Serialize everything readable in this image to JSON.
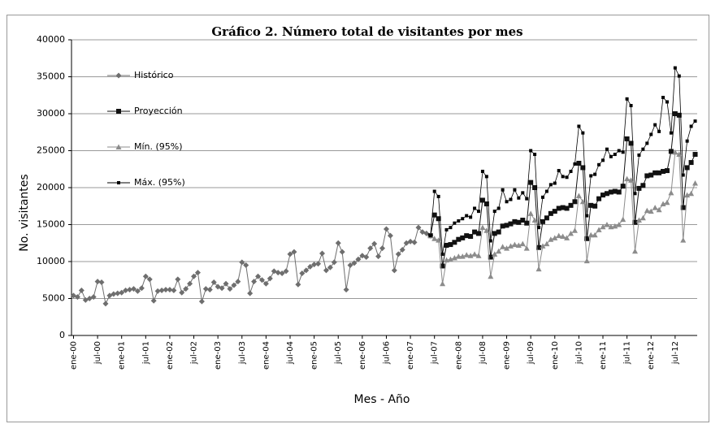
{
  "chart_data": {
    "type": "line",
    "title": "Gráfico 2. Número total de visitantes por mes",
    "x_label": "Mes - Año",
    "y_label": "No. visitantes",
    "categories": [
      "ene-00",
      null,
      null,
      null,
      null,
      null,
      "jul-00",
      null,
      null,
      null,
      null,
      null,
      "ene-01",
      null,
      null,
      null,
      null,
      null,
      "jul-01",
      null,
      null,
      null,
      null,
      null,
      "ene-02",
      null,
      null,
      null,
      null,
      null,
      "jul-02",
      null,
      null,
      null,
      null,
      null,
      "ene-03",
      null,
      null,
      null,
      null,
      null,
      "jul-03",
      null,
      null,
      null,
      null,
      null,
      "ene-04",
      null,
      null,
      null,
      null,
      null,
      "jul-04",
      null,
      null,
      null,
      null,
      null,
      "ene-05",
      null,
      null,
      null,
      null,
      null,
      "jul-05",
      null,
      null,
      null,
      null,
      null,
      "ene-06",
      null,
      null,
      null,
      null,
      null,
      "jul-06",
      null,
      null,
      null,
      null,
      null,
      "ene-07",
      null,
      null,
      null,
      null,
      null,
      "jul-07",
      null,
      null,
      null,
      null,
      null,
      "ene-08",
      null,
      null,
      null,
      null,
      null,
      "jul-08",
      null,
      null,
      null,
      null,
      null,
      "ene-09",
      null,
      null,
      null,
      null,
      null,
      "jul-09",
      null,
      null,
      null,
      null,
      null,
      "ene-10",
      null,
      null,
      null,
      null,
      null,
      "jul-10",
      null,
      null,
      null,
      null,
      null,
      "ene-11",
      null,
      null,
      null,
      null,
      null,
      "jul-11",
      null,
      null,
      null,
      null,
      null,
      "ene-12",
      null,
      null,
      null,
      null,
      null,
      "jul-12",
      null,
      null,
      null,
      null,
      null
    ],
    "series": [
      {
        "name": "Histórico",
        "color": "#6e6e6e",
        "marker": "diamond",
        "values": [
          5400,
          5200,
          6100,
          4800,
          5000,
          5200,
          7300,
          7200,
          4300,
          5400,
          5600,
          5700,
          5800,
          6100,
          6200,
          6300,
          6000,
          6400,
          8000,
          7600,
          4700,
          6000,
          6100,
          6200,
          6200,
          6100,
          7600,
          5800,
          6300,
          7000,
          8000,
          8500,
          4600,
          6300,
          6200,
          7200,
          6600,
          6400,
          7000,
          6300,
          6800,
          7300,
          9900,
          9500,
          5700,
          7300,
          8000,
          7500,
          7000,
          7700,
          8700,
          8500,
          8400,
          8700,
          11000,
          11300,
          6900,
          8400,
          8800,
          9300,
          9600,
          9700,
          11100,
          8800,
          9200,
          9900,
          12500,
          11300,
          6200,
          9500,
          9800,
          10300,
          10800,
          10600,
          11800,
          12400,
          10700,
          11800,
          14400,
          13500,
          8800,
          11000,
          11600,
          12500,
          12700,
          12600,
          14600,
          14000,
          13800,
          13500,
          null,
          null,
          null,
          null,
          null,
          null,
          null,
          null,
          null,
          null,
          null,
          null,
          null,
          null,
          null,
          null,
          null,
          null,
          null,
          null,
          null,
          null,
          null,
          null,
          null,
          null,
          null,
          null,
          null,
          null,
          null,
          null,
          null,
          null,
          null,
          null,
          null,
          null,
          null,
          null,
          null,
          null,
          null,
          null,
          null,
          null,
          null,
          null,
          null,
          null,
          null,
          null,
          null,
          null,
          null,
          null,
          null,
          null,
          null,
          null,
          null,
          null,
          null,
          null,
          null,
          null
        ]
      },
      {
        "name": "Proyección",
        "color": "#111111",
        "marker": "square",
        "values": [
          null,
          null,
          null,
          null,
          null,
          null,
          null,
          null,
          null,
          null,
          null,
          null,
          null,
          null,
          null,
          null,
          null,
          null,
          null,
          null,
          null,
          null,
          null,
          null,
          null,
          null,
          null,
          null,
          null,
          null,
          null,
          null,
          null,
          null,
          null,
          null,
          null,
          null,
          null,
          null,
          null,
          null,
          null,
          null,
          null,
          null,
          null,
          null,
          null,
          null,
          null,
          null,
          null,
          null,
          null,
          null,
          null,
          null,
          null,
          null,
          null,
          null,
          null,
          null,
          null,
          null,
          null,
          null,
          null,
          null,
          null,
          null,
          null,
          null,
          null,
          null,
          null,
          null,
          null,
          null,
          null,
          null,
          null,
          null,
          null,
          null,
          null,
          null,
          null,
          13500,
          16300,
          15800,
          9400,
          12200,
          12300,
          12600,
          13000,
          13200,
          13500,
          13400,
          14000,
          13800,
          18300,
          17800,
          10600,
          13800,
          14000,
          14800,
          14900,
          15100,
          15400,
          15300,
          15600,
          15200,
          20700,
          20000,
          11900,
          15400,
          15900,
          16500,
          16800,
          17200,
          17300,
          17200,
          17600,
          18100,
          23300,
          22700,
          13100,
          17600,
          17500,
          18500,
          19000,
          19200,
          19400,
          19500,
          19400,
          20200,
          26600,
          26000,
          15300,
          19900,
          20300,
          21600,
          21700,
          22000,
          22000,
          22200,
          22300,
          24900,
          30000,
          29800,
          17300,
          22700,
          23400,
          24500
        ]
      },
      {
        "name": "Mín. (95%)",
        "color": "#8c8c8c",
        "marker": "triangle",
        "values": [
          null,
          null,
          null,
          null,
          null,
          null,
          null,
          null,
          null,
          null,
          null,
          null,
          null,
          null,
          null,
          null,
          null,
          null,
          null,
          null,
          null,
          null,
          null,
          null,
          null,
          null,
          null,
          null,
          null,
          null,
          null,
          null,
          null,
          null,
          null,
          null,
          null,
          null,
          null,
          null,
          null,
          null,
          null,
          null,
          null,
          null,
          null,
          null,
          null,
          null,
          null,
          null,
          null,
          null,
          null,
          null,
          null,
          null,
          null,
          null,
          null,
          null,
          null,
          null,
          null,
          null,
          null,
          null,
          null,
          null,
          null,
          null,
          null,
          null,
          null,
          null,
          null,
          null,
          null,
          null,
          null,
          null,
          null,
          null,
          null,
          null,
          null,
          null,
          null,
          13500,
          13100,
          12900,
          7000,
          10200,
          10300,
          10500,
          10700,
          10700,
          10900,
          10800,
          11000,
          10800,
          14600,
          14200,
          8000,
          11000,
          11400,
          12000,
          11800,
          12100,
          12300,
          12200,
          12400,
          11800,
          16500,
          15600,
          9000,
          12100,
          12400,
          13000,
          13200,
          13500,
          13400,
          13200,
          13800,
          14200,
          18900,
          18100,
          10100,
          13600,
          13600,
          14300,
          14700,
          15000,
          14700,
          14800,
          15000,
          15700,
          21200,
          21000,
          11400,
          15600,
          15900,
          16900,
          16800,
          17300,
          17000,
          17800,
          18000,
          19300,
          24800,
          24500,
          12900,
          19000,
          19200,
          20600
        ]
      },
      {
        "name": "Máx. (95%)",
        "color": "#000000",
        "marker": "small-square",
        "values": [
          null,
          null,
          null,
          null,
          null,
          null,
          null,
          null,
          null,
          null,
          null,
          null,
          null,
          null,
          null,
          null,
          null,
          null,
          null,
          null,
          null,
          null,
          null,
          null,
          null,
          null,
          null,
          null,
          null,
          null,
          null,
          null,
          null,
          null,
          null,
          null,
          null,
          null,
          null,
          null,
          null,
          null,
          null,
          null,
          null,
          null,
          null,
          null,
          null,
          null,
          null,
          null,
          null,
          null,
          null,
          null,
          null,
          null,
          null,
          null,
          null,
          null,
          null,
          null,
          null,
          null,
          null,
          null,
          null,
          null,
          null,
          null,
          null,
          null,
          null,
          null,
          null,
          null,
          null,
          null,
          null,
          null,
          null,
          null,
          null,
          null,
          null,
          null,
          null,
          13500,
          19500,
          18800,
          11000,
          14300,
          14600,
          15200,
          15500,
          15800,
          16200,
          16000,
          17200,
          16800,
          22200,
          21500,
          12800,
          16800,
          17200,
          19700,
          18100,
          18400,
          19700,
          18600,
          19300,
          18500,
          25000,
          24500,
          14600,
          18700,
          19500,
          20400,
          20600,
          22300,
          21500,
          21400,
          22200,
          23200,
          28300,
          27400,
          16200,
          21600,
          21800,
          23100,
          23700,
          25200,
          24200,
          24500,
          25000,
          24800,
          32000,
          31100,
          19200,
          24400,
          25200,
          26000,
          27200,
          28500,
          27600,
          32200,
          31600,
          27400,
          36200,
          35100,
          21700,
          26300,
          28300,
          29000
        ]
      }
    ],
    "ylim": [
      0,
      40000
    ],
    "yticks": [
      0,
      5000,
      10000,
      15000,
      20000,
      25000,
      30000,
      35000,
      40000
    ],
    "grid": true,
    "legend": "upper left"
  }
}
